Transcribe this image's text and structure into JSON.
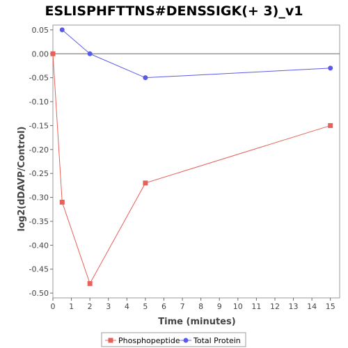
{
  "chart_data": {
    "type": "line",
    "title": "ESLISPHFTTNS#DENSSIGK(+ 3)_v1",
    "xlabel": "Time (minutes)",
    "ylabel": "log2(dDAVP/Control)",
    "xlim": [
      0,
      15.5
    ],
    "ylim": [
      -0.51,
      0.06
    ],
    "x_ticks": [
      0,
      1,
      2,
      3,
      4,
      5,
      6,
      7,
      8,
      9,
      10,
      11,
      12,
      13,
      14,
      15
    ],
    "y_ticks": [
      0.05,
      0.0,
      -0.05,
      -0.1,
      -0.15,
      -0.2,
      -0.25,
      -0.3,
      -0.35,
      -0.4,
      -0.45,
      -0.5
    ],
    "y_tick_labels": [
      "0.05",
      "0.00",
      "-0.05",
      "-0.10",
      "-0.15",
      "-0.20",
      "-0.25",
      "-0.30",
      "-0.35",
      "-0.40",
      "-0.45",
      "-0.50"
    ],
    "zero_line": true,
    "grid": false,
    "legend_position": "bottom",
    "series": [
      {
        "name": "Phosphopeptide",
        "color": "#e8605a",
        "marker": "square",
        "x": [
          0,
          0.5,
          2,
          5,
          15
        ],
        "y": [
          0.0,
          -0.31,
          -0.48,
          -0.27,
          -0.15
        ]
      },
      {
        "name": "Total Protein",
        "color": "#5a5ae8",
        "marker": "circle",
        "x": [
          0.5,
          2,
          5,
          15
        ],
        "y": [
          0.05,
          0.0,
          -0.05,
          -0.03
        ]
      }
    ]
  }
}
